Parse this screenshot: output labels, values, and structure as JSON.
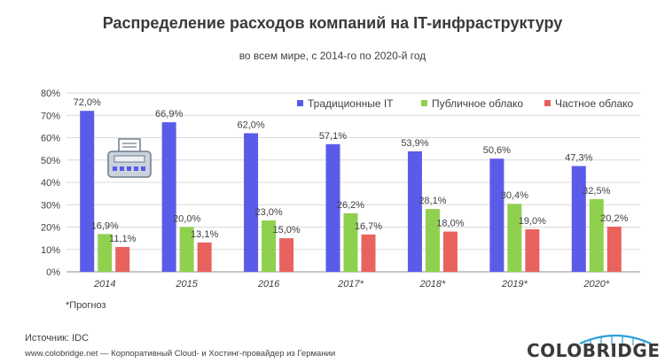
{
  "title": "Распределение расходов компаний на IT-инфраструктуру",
  "subtitle": "во всем мире, с 2014-го по 2020-й год",
  "footnote": "*Прогноз",
  "source": "Источник: IDC",
  "site": "www.colobridge.net — Корпоративный Cloud- и Хостинг-провайдер из Германии",
  "logo_text": "COLOBRIDGE",
  "colors": {
    "traditional": "#5b5bea",
    "public": "#8fd14f",
    "private": "#e8625e",
    "grid": "#d9d9d9",
    "axis": "#8c8c8c"
  },
  "chart_data": {
    "type": "bar",
    "categories": [
      "2014",
      "2015",
      "2016",
      "2017*",
      "2018*",
      "2019*",
      "2020*"
    ],
    "series": [
      {
        "name": "Традиционные IT",
        "values": [
          72.0,
          66.9,
          62.0,
          57.1,
          53.9,
          50.6,
          47.3
        ],
        "labels": [
          "72,0%",
          "66,9%",
          "62,0%",
          "57,1%",
          "53,9%",
          "50,6%",
          "47,3%"
        ]
      },
      {
        "name": "Публичное облако",
        "values": [
          16.9,
          20.0,
          23.0,
          26.2,
          28.1,
          30.4,
          32.5
        ],
        "labels": [
          "16,9%",
          "20,0%",
          "23,0%",
          "26,2%",
          "28,1%",
          "30,4%",
          "32,5%"
        ]
      },
      {
        "name": "Частное облако",
        "values": [
          11.1,
          13.1,
          15.0,
          16.7,
          18.0,
          19.0,
          20.2
        ],
        "labels": [
          "11,1%",
          "13,1%",
          "15,0%",
          "16,7%",
          "18,0%",
          "19,0%",
          "20,2%"
        ]
      }
    ],
    "ylim": [
      0,
      80
    ],
    "yticks": [
      "0%",
      "10%",
      "20%",
      "30%",
      "40%",
      "50%",
      "60%",
      "70%",
      "80%"
    ],
    "grid": true,
    "legend_position": "top-right"
  }
}
